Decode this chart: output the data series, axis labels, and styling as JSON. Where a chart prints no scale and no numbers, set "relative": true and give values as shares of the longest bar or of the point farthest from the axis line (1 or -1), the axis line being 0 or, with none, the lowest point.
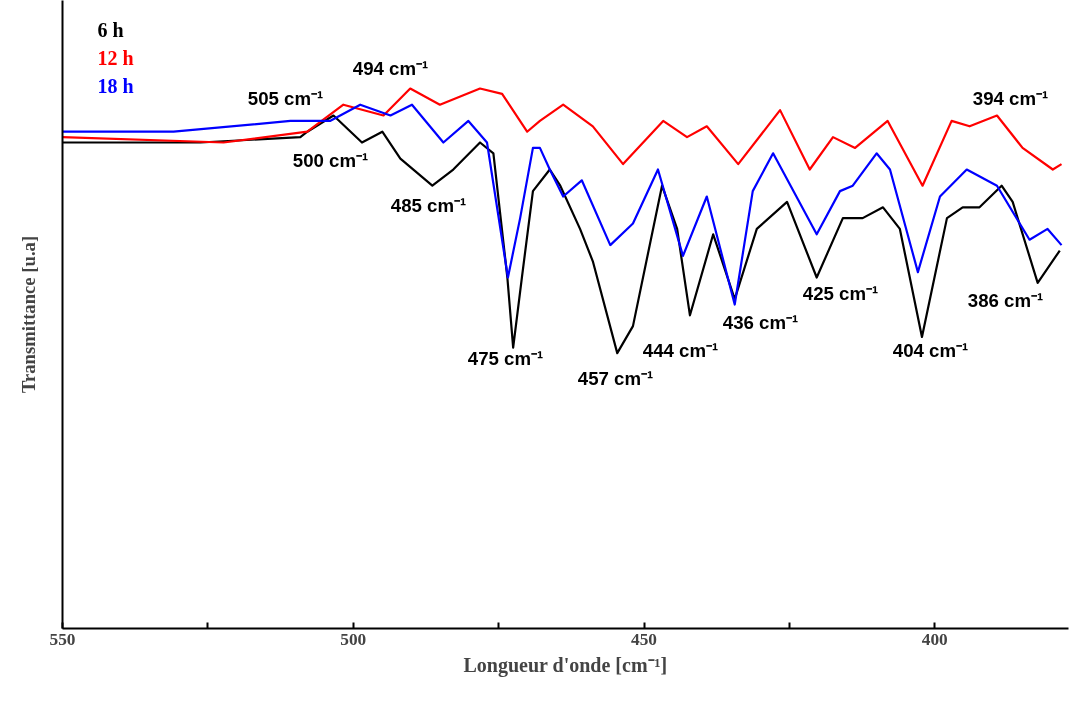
{
  "chart_data": {
    "type": "line",
    "relative": true,
    "xlabel": "Longueur d'onde [cm⁻¹]",
    "ylabel": "Transmittance [u.a]",
    "xlim": [
      550,
      377
    ],
    "xticks": [
      550,
      {
        "value": 525,
        "label": null
      },
      500,
      {
        "value": 475,
        "label": null
      },
      450,
      {
        "value": 425,
        "label": null
      },
      400
    ],
    "grid": false,
    "legend": "top left",
    "marker": "none",
    "line_style": "solid",
    "series": [
      {
        "name": "6 h",
        "color": "#000000",
        "x": [
          550,
          526.3,
          509.1,
          507.9,
          503.4,
          498.5,
          495.0,
          491.9,
          486.4,
          482.8,
          478.2,
          475.9,
          473.5,
          472.5,
          471.0,
          469.1,
          466.2,
          464.4,
          461.0,
          458.8,
          454.6,
          451.9,
          446.9,
          444.3,
          442.1,
          438.1,
          434.4,
          430.6,
          425.4,
          420.3,
          415.8,
          412.4,
          408.9,
          406.0,
          402.2,
          397.9,
          395.2,
          392.3,
          388.5,
          386.6,
          382.3,
          378.5
        ],
        "values": [
          0.9,
          0.9,
          0.91,
          0.92,
          0.95,
          0.9,
          0.92,
          0.87,
          0.82,
          0.85,
          0.9,
          0.88,
          0.65,
          0.52,
          0.65,
          0.81,
          0.85,
          0.82,
          0.74,
          0.68,
          0.51,
          0.56,
          0.82,
          0.74,
          0.58,
          0.73,
          0.61,
          0.74,
          0.79,
          0.65,
          0.76,
          0.76,
          0.78,
          0.74,
          0.54,
          0.76,
          0.78,
          0.78,
          0.82,
          0.79,
          0.64,
          0.7
        ]
      },
      {
        "name": "12 h",
        "color": "#ff0000",
        "x": [
          550,
          522.3,
          507.9,
          501.7,
          494.8,
          490.2,
          485.1,
          478.2,
          474.4,
          470.1,
          467.9,
          463.9,
          458.8,
          453.6,
          446.7,
          442.6,
          439.2,
          433.8,
          426.6,
          421.5,
          417.5,
          413.7,
          408.1,
          402.1,
          397.1,
          394.0,
          389.3,
          384.9,
          379.7,
          378.2
        ],
        "values": [
          0.91,
          0.9,
          0.92,
          0.97,
          0.95,
          1.0,
          0.97,
          1.0,
          0.99,
          0.92,
          0.94,
          0.97,
          0.93,
          0.86,
          0.94,
          0.91,
          0.93,
          0.86,
          0.96,
          0.85,
          0.91,
          0.89,
          0.94,
          0.82,
          0.94,
          0.93,
          0.95,
          0.89,
          0.85,
          0.86
        ]
      },
      {
        "name": "18 h",
        "color": "#0000ff",
        "x": [
          550,
          530.9,
          510.8,
          507.9,
          504.0,
          498.8,
          493.6,
          489.9,
          484.5,
          480.2,
          477.0,
          473.4,
          471.3,
          469.1,
          467.9,
          466.2,
          463.9,
          460.7,
          455.8,
          451.9,
          447.6,
          443.3,
          439.2,
          434.4,
          431.3,
          427.8,
          420.3,
          416.3,
          414.1,
          410.0,
          407.7,
          402.9,
          399.1,
          394.5,
          389.3,
          383.7,
          380.6,
          378.2
        ],
        "values": [
          0.92,
          0.92,
          0.94,
          0.94,
          0.94,
          0.97,
          0.95,
          0.97,
          0.9,
          0.94,
          0.9,
          0.65,
          0.76,
          0.89,
          0.89,
          0.85,
          0.8,
          0.83,
          0.71,
          0.75,
          0.85,
          0.69,
          0.8,
          0.6,
          0.81,
          0.88,
          0.73,
          0.81,
          0.82,
          0.88,
          0.85,
          0.66,
          0.8,
          0.85,
          0.82,
          0.72,
          0.74,
          0.71
        ]
      }
    ],
    "annotations": [
      "505 cm⁻¹",
      "494 cm⁻¹",
      "500 cm⁻¹",
      "485 cm⁻¹",
      "475 cm⁻¹",
      "457 cm⁻¹",
      "444 cm⁻¹",
      "436 cm⁻¹",
      "425 cm⁻¹",
      "404 cm⁻¹",
      "386 cm⁻¹",
      "394 cm⁻¹"
    ]
  }
}
